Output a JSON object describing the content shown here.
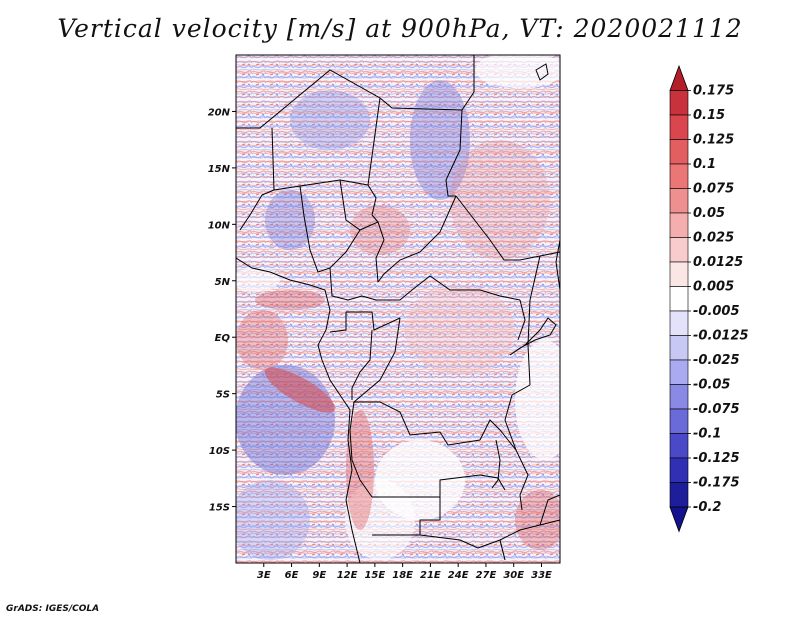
{
  "title": "Vertical velocity [m/s] at 900hPa, VT: 2020021112",
  "footer": "GrADS: IGES/COLA",
  "map": {
    "lon_range": [
      0,
      35
    ],
    "lat_range": [
      -20,
      25
    ],
    "lon_ticks": [
      "3E",
      "6E",
      "9E",
      "12E",
      "15E",
      "18E",
      "21E",
      "24E",
      "27E",
      "30E",
      "33E"
    ],
    "lat_ticks": [
      "20N",
      "15N",
      "10N",
      "5N",
      "EQ",
      "5S",
      "10S",
      "15S"
    ]
  },
  "colorbar": {
    "levels": [
      "0.175",
      "0.15",
      "0.125",
      "0.1",
      "0.075",
      "0.05",
      "0.025",
      "0.0125",
      "0.005",
      "-0.005",
      "-0.0125",
      "-0.025",
      "-0.05",
      "-0.075",
      "-0.1",
      "-0.125",
      "-0.175",
      "-0.2"
    ],
    "colors": [
      "#b41e28",
      "#c8323c",
      "#d9464e",
      "#e35e60",
      "#ea7676",
      "#ef9090",
      "#f4aeae",
      "#f8cccc",
      "#fbe6e6",
      "#ffffff",
      "#e2e2fb",
      "#c8c8f5",
      "#aaaaf0",
      "#8a8ae6",
      "#6a6ad8",
      "#4a4ac8",
      "#3030b4",
      "#1e1e9a",
      "#12128c"
    ]
  }
}
